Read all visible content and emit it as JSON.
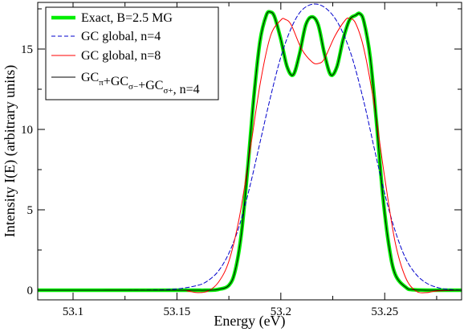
{
  "chart_data": {
    "type": "line",
    "title": "",
    "xlabel": "Energy (eV)",
    "ylabel": "Intensity I(E) (arbitrary units)",
    "xlim": [
      53.083,
      53.287
    ],
    "ylim": [
      -0.6,
      17.9
    ],
    "xticks": [
      53.1,
      53.15,
      53.2,
      53.25
    ],
    "xtick_labels": [
      "53.1",
      "53.15",
      "53.2",
      "53.25"
    ],
    "yticks": [
      0,
      5,
      10,
      15
    ],
    "ytick_labels": [
      "0",
      "5",
      "10",
      "15"
    ],
    "grid": false,
    "legend_position": "top-left",
    "legend": {
      "entries": [
        {
          "label": "Exact, B=2.5 MG"
        },
        {
          "label": "GC global, n=4"
        },
        {
          "label": "GC global, n=8"
        },
        {
          "label_parts": [
            {
              "t": "GC"
            },
            {
              "t": "π",
              "sub": true
            },
            {
              "t": "+GC"
            },
            {
              "t": "σ−",
              "sub": true
            },
            {
              "t": "+GC"
            },
            {
              "t": "σ+",
              "sub": true
            },
            {
              "t": ", n=4"
            }
          ]
        }
      ]
    },
    "series": [
      {
        "name": "Exact, B=2.5 MG",
        "color": "#00ee00",
        "style": "solid-thick",
        "x": [
          53.083,
          53.15,
          53.165,
          53.17,
          53.175,
          53.178,
          53.181,
          53.184,
          53.187,
          53.19,
          53.193,
          53.195,
          53.197,
          53.2,
          53.203,
          53.206,
          53.209,
          53.212,
          53.215,
          53.218,
          53.221,
          53.224,
          53.227,
          53.23,
          53.233,
          53.236,
          53.238,
          53.24,
          53.243,
          53.246,
          53.249,
          53.252,
          53.255,
          53.26,
          53.265,
          53.287
        ],
        "y": [
          0,
          0,
          0,
          0.05,
          0.3,
          1.2,
          3.5,
          7.5,
          12.0,
          15.5,
          17.1,
          17.3,
          17.0,
          15.6,
          13.9,
          13.4,
          14.7,
          16.5,
          17.0,
          16.5,
          14.7,
          13.4,
          13.9,
          15.6,
          16.8,
          17.1,
          17.2,
          16.7,
          14.5,
          10.5,
          6.0,
          2.8,
          1.0,
          0.2,
          0.02,
          0
        ]
      },
      {
        "name": "GC global, n=4",
        "color": "#0000cc",
        "style": "dashed",
        "x": [
          53.083,
          53.12,
          53.14,
          53.15,
          53.16,
          53.165,
          53.17,
          53.175,
          53.18,
          53.185,
          53.19,
          53.195,
          53.2,
          53.205,
          53.21,
          53.216,
          53.222,
          53.228,
          53.234,
          53.24,
          53.245,
          53.25,
          53.255,
          53.26,
          53.265,
          53.27,
          53.275,
          53.28,
          53.287
        ],
        "y": [
          0,
          0,
          0.02,
          0.08,
          0.3,
          0.6,
          1.2,
          2.3,
          4.0,
          6.4,
          9.2,
          12.0,
          14.5,
          16.3,
          17.4,
          17.8,
          17.5,
          16.5,
          14.6,
          11.7,
          8.8,
          6.0,
          3.7,
          2.0,
          1.0,
          0.45,
          0.18,
          0.06,
          0
        ]
      },
      {
        "name": "GC global, n=8",
        "color": "#ff0000",
        "style": "solid-thin",
        "x": [
          53.083,
          53.15,
          53.155,
          53.16,
          53.165,
          53.17,
          53.175,
          53.18,
          53.185,
          53.19,
          53.195,
          53.2,
          53.202,
          53.205,
          53.21,
          53.215,
          53.218,
          53.221,
          53.226,
          53.231,
          53.233,
          53.236,
          53.24,
          53.245,
          53.25,
          53.255,
          53.26,
          53.265,
          53.27,
          53.275,
          53.287
        ],
        "y": [
          0,
          0,
          -0.05,
          -0.15,
          -0.05,
          0.5,
          1.8,
          4.5,
          8.5,
          12.8,
          15.8,
          16.8,
          16.85,
          16.5,
          15.0,
          14.2,
          14.1,
          14.4,
          15.8,
          16.8,
          16.9,
          16.6,
          15.0,
          11.5,
          7.0,
          3.0,
          0.8,
          -0.05,
          -0.15,
          -0.05,
          0
        ]
      },
      {
        "name": "GC_π+GC_σ−+GC_σ+, n=4",
        "color": "#000000",
        "style": "solid-thin",
        "x": [
          53.083,
          53.15,
          53.165,
          53.17,
          53.175,
          53.178,
          53.181,
          53.184,
          53.187,
          53.19,
          53.193,
          53.195,
          53.197,
          53.2,
          53.203,
          53.206,
          53.209,
          53.212,
          53.215,
          53.218,
          53.221,
          53.224,
          53.227,
          53.23,
          53.233,
          53.236,
          53.238,
          53.24,
          53.243,
          53.246,
          53.249,
          53.252,
          53.255,
          53.26,
          53.265,
          53.287
        ],
        "y": [
          0,
          0,
          0,
          0.05,
          0.3,
          1.2,
          3.5,
          7.5,
          12.0,
          15.5,
          17.1,
          17.3,
          17.0,
          15.6,
          13.9,
          13.4,
          14.7,
          16.5,
          17.0,
          16.5,
          14.7,
          13.4,
          13.9,
          15.6,
          16.8,
          17.1,
          17.2,
          16.7,
          14.5,
          10.5,
          6.0,
          2.8,
          1.0,
          0.2,
          0.02,
          0
        ]
      }
    ]
  }
}
